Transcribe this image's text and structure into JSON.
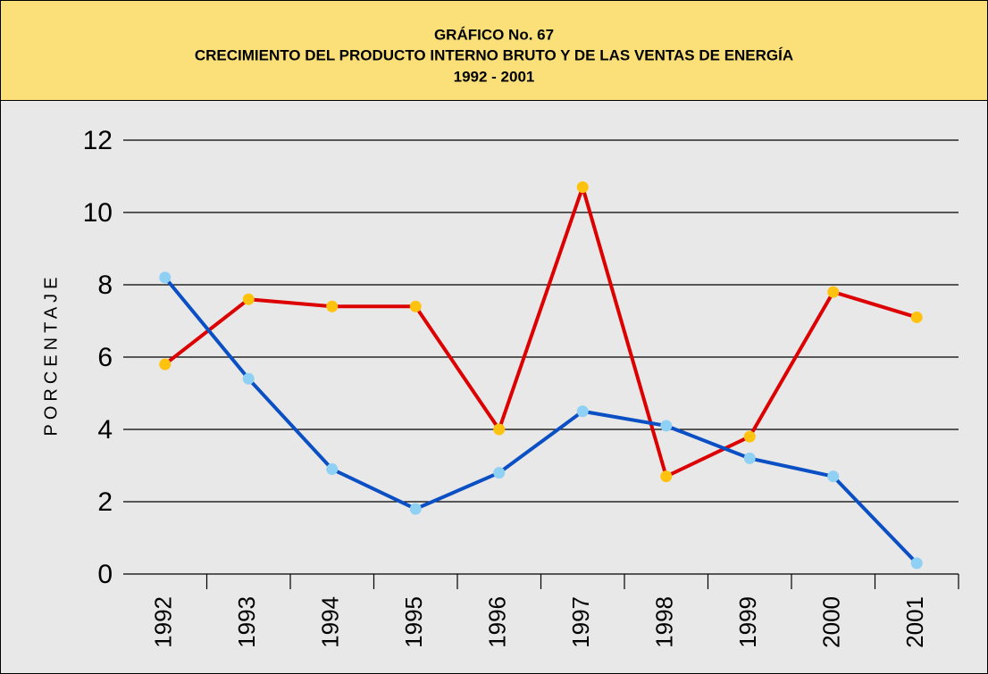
{
  "chart_data": {
    "type": "line",
    "title": "GRÁFICO No. 67",
    "subtitle": "CRECIMIENTO DEL PRODUCTO INTERNO BRUTO Y DE LAS VENTAS DE ENERGÍA",
    "period": "1992 - 2001",
    "y_label": "PORCENTAJE",
    "categories": [
      "1992",
      "1993",
      "1994",
      "1995",
      "1996",
      "1997",
      "1998",
      "1999",
      "2000",
      "2001"
    ],
    "series": [
      {
        "color": "#dd0000",
        "marker_color": "#ffc20e",
        "values": [
          5.8,
          7.6,
          7.4,
          7.4,
          4.0,
          10.7,
          2.7,
          3.8,
          7.8,
          7.1
        ]
      },
      {
        "color": "#0a4fc4",
        "marker_color": "#8fd0f5",
        "values": [
          8.2,
          5.4,
          2.9,
          1.8,
          2.8,
          4.5,
          4.1,
          3.2,
          2.7,
          0.3
        ]
      }
    ],
    "ylim": [
      0,
      12
    ],
    "yticks": [
      0,
      2,
      4,
      6,
      8,
      10,
      12
    ],
    "grid": true
  }
}
